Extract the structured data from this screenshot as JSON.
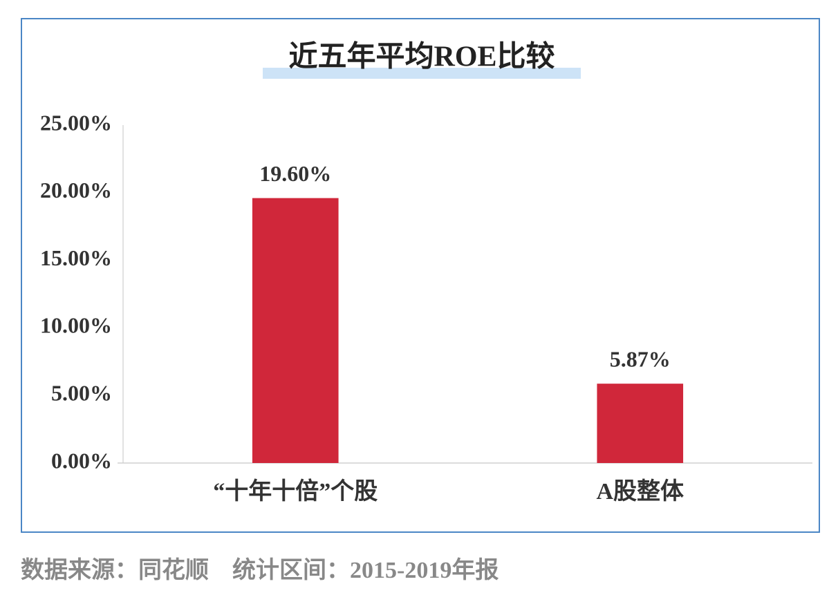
{
  "chart_data": {
    "type": "bar",
    "title": "近五年平均ROE比较",
    "categories": [
      "“十年十倍”个股",
      "A股整体"
    ],
    "values": [
      19.6,
      5.87
    ],
    "value_labels": [
      "19.60%",
      "5.87%"
    ],
    "color": "#d0273a",
    "ylim": [
      0,
      25
    ],
    "yticks": [
      {
        "value": 0,
        "label": "0.00%"
      },
      {
        "value": 5,
        "label": "5.00%"
      },
      {
        "value": 10,
        "label": "10.00%"
      },
      {
        "value": 15,
        "label": "15.00%"
      },
      {
        "value": 20,
        "label": "20.00%"
      },
      {
        "value": 25,
        "label": "25.00%"
      }
    ],
    "grid": false,
    "source": "数据来源：同花顺　统计区间：2015-2019年报"
  }
}
